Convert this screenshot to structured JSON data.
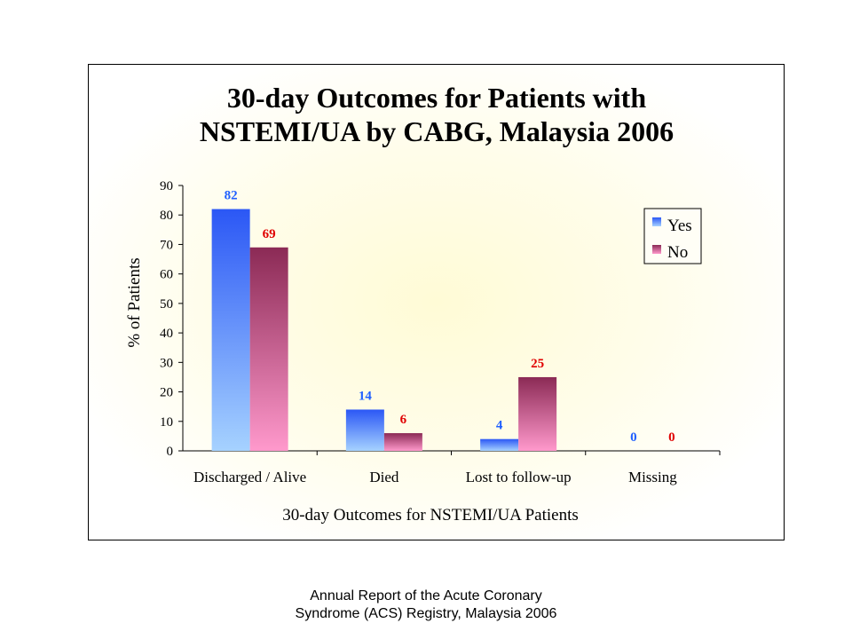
{
  "caption": {
    "line1": "Annual Report of the Acute Coronary",
    "line2": "Syndrome (ACS) Registry, Malaysia 2006"
  },
  "colors": {
    "yes_label": "#1f5fff",
    "no_label": "#e00000",
    "yes_bar_top": "#2b57f5",
    "yes_bar_bottom": "#a6d2ff",
    "no_bar_top": "#8b2a55",
    "no_bar_bottom": "#ff99cc"
  },
  "chart_data": {
    "type": "bar",
    "title_lines": [
      "30-day Outcomes for Patients with",
      "NSTEMI/UA by CABG, Malaysia 2006"
    ],
    "xlabel": "30-day Outcomes for NSTEMI/UA Patients",
    "ylabel": "% of Patients",
    "ylim": [
      0,
      90
    ],
    "yticks": [
      0,
      10,
      20,
      30,
      40,
      50,
      60,
      70,
      80,
      90
    ],
    "categories": [
      "Discharged / Alive",
      "Died",
      "Lost to follow-up",
      "Missing"
    ],
    "series": [
      {
        "name": "Yes",
        "values": [
          82,
          14,
          4,
          0
        ]
      },
      {
        "name": "No",
        "values": [
          69,
          6,
          25,
          0
        ]
      }
    ],
    "legend_position": "top-right",
    "grid": false
  }
}
